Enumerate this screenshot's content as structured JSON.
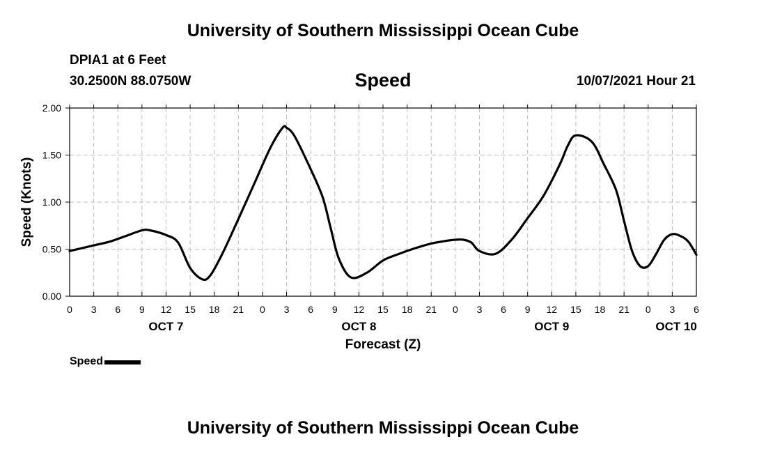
{
  "header": {
    "title": "University of Southern Mississippi Ocean Cube",
    "station": "DPIA1 at 6 Feet",
    "coords": "30.2500N  88.0750W",
    "subtitle": "Speed",
    "datetime": "10/07/2021 Hour 21"
  },
  "footer": {
    "title": "University of Southern Mississippi Ocean Cube"
  },
  "legend": {
    "label": "Speed"
  },
  "chart_data": {
    "type": "line",
    "title": "Speed",
    "xlabel": "Forecast (Z)",
    "ylabel": "Speed (Knots)",
    "xlim": [
      0,
      78
    ],
    "ylim": [
      0,
      2.0
    ],
    "grid": true,
    "y_ticks": [
      0.0,
      0.5,
      1.0,
      1.5,
      2.0
    ],
    "y_tick_labels": [
      "0.00",
      "0.50",
      "1.00",
      "1.50",
      "2.00"
    ],
    "x_ticks": [
      0,
      3,
      6,
      9,
      12,
      15,
      18,
      21,
      24,
      27,
      30,
      33,
      36,
      39,
      42,
      45,
      48,
      51,
      54,
      57,
      60,
      63,
      66,
      69,
      72,
      75,
      78
    ],
    "x_tick_labels": [
      "0",
      "3",
      "6",
      "9",
      "12",
      "15",
      "18",
      "21",
      "0",
      "3",
      "6",
      "9",
      "12",
      "15",
      "18",
      "21",
      "0",
      "3",
      "6",
      "9",
      "12",
      "15",
      "18",
      "21",
      "0",
      "3",
      "6"
    ],
    "date_labels": [
      {
        "text": "OCT 7",
        "x": 12
      },
      {
        "text": "OCT 8",
        "x": 36
      },
      {
        "text": "OCT 9",
        "x": 60
      },
      {
        "text": "OCT 10",
        "x": 75.5
      }
    ],
    "series": [
      {
        "name": "Speed",
        "color": "#000000",
        "x": [
          0,
          3,
          5,
          7,
          9,
          10,
          12,
          13.5,
          15,
          16.5,
          17.5,
          19,
          21,
          23,
          25,
          26.5,
          27,
          28,
          30,
          31.5,
          32.5,
          33.5,
          35,
          37,
          39,
          41,
          43,
          45,
          47,
          48,
          49,
          50,
          51,
          53,
          55,
          57,
          59,
          61,
          62,
          63,
          65,
          66.5,
          68,
          69,
          70,
          71,
          72,
          73,
          74,
          75,
          76,
          77,
          78
        ],
        "values": [
          0.48,
          0.54,
          0.58,
          0.64,
          0.7,
          0.7,
          0.65,
          0.57,
          0.3,
          0.18,
          0.22,
          0.45,
          0.82,
          1.2,
          1.58,
          1.79,
          1.79,
          1.7,
          1.35,
          1.05,
          0.72,
          0.4,
          0.2,
          0.25,
          0.38,
          0.45,
          0.51,
          0.56,
          0.59,
          0.6,
          0.6,
          0.57,
          0.48,
          0.45,
          0.6,
          0.83,
          1.07,
          1.4,
          1.6,
          1.71,
          1.64,
          1.4,
          1.13,
          0.8,
          0.48,
          0.32,
          0.32,
          0.45,
          0.6,
          0.66,
          0.64,
          0.58,
          0.44
        ]
      }
    ]
  }
}
